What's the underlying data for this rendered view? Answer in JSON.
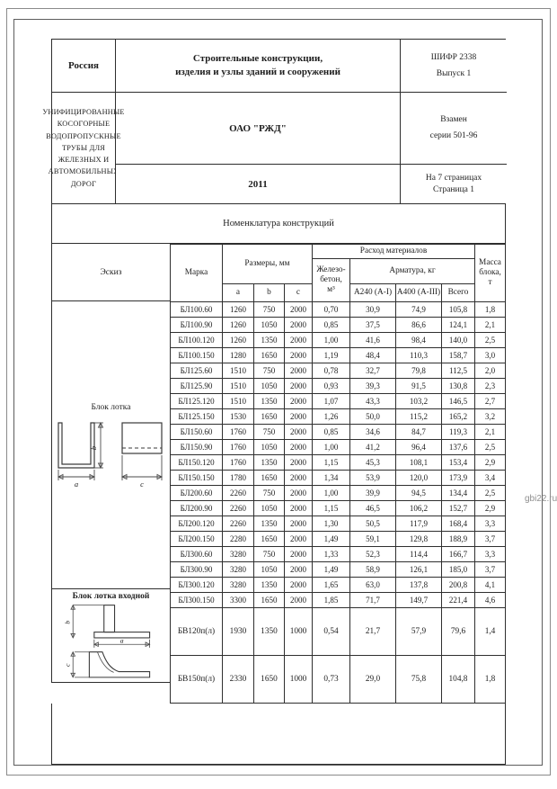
{
  "page": {
    "title_block": {
      "country": "Россия",
      "series_title_line1": "Строительные конструкции,",
      "series_title_line2": "изделия и узлы зданий и сооружений",
      "code_line1": "ШИФР 2338",
      "code_line2": "Выпуск 1",
      "organization": "ОАО \"РЖД\"",
      "subject_line1": "УНИФИЦИРОВАННЫЕ КОСОГОРНЫЕ ВОДОПРОПУСКНЫЕ ТРУБЫ ДЛЯ",
      "subject_line2": "ЖЕЛЕЗНЫХ И АВТОМОБИЛЬНЫХ ДОРОГ",
      "replaces_line1": "Взамен",
      "replaces_line2": "серии 501-96",
      "year": "2011",
      "pages_line1": "На 7 страницах",
      "pages_line2": "Страница 1"
    },
    "section_title": "Номенклатура конструкций",
    "watermark": "gbi22.ru"
  },
  "table": {
    "headers": {
      "sketch": "Эскиз",
      "mark": "Марка",
      "dimensions": "Размеры, мм",
      "dim_a": "a",
      "dim_b": "b",
      "dim_c": "c",
      "materials": "Расход материалов",
      "concrete_l1": "Железо-",
      "concrete_l2": "бетон,",
      "concrete_l3": "м³",
      "rebar": "Арматура, кг",
      "a240": "А240 (А-I)",
      "a400": "А400 (А-III)",
      "total": "Всего",
      "mass_l1": "Масса",
      "mass_l2": "блока,",
      "mass_l3": "т"
    },
    "group1_label": "Блок лотка",
    "group2_label": "Блок лотка входной",
    "sketch_dims": {
      "a": "a",
      "b": "b",
      "c": "c"
    },
    "rows": [
      [
        "БЛ100.60",
        "1260",
        "750",
        "2000",
        "0,70",
        "30,9",
        "74,9",
        "105,8",
        "1,8"
      ],
      [
        "БЛ100.90",
        "1260",
        "1050",
        "2000",
        "0,85",
        "37,5",
        "86,6",
        "124,1",
        "2,1"
      ],
      [
        "БЛ100.120",
        "1260",
        "1350",
        "2000",
        "1,00",
        "41,6",
        "98,4",
        "140,0",
        "2,5"
      ],
      [
        "БЛ100.150",
        "1280",
        "1650",
        "2000",
        "1,19",
        "48,4",
        "110,3",
        "158,7",
        "3,0"
      ],
      [
        "БЛ125.60",
        "1510",
        "750",
        "2000",
        "0,78",
        "32,7",
        "79,8",
        "112,5",
        "2,0"
      ],
      [
        "БЛ125.90",
        "1510",
        "1050",
        "2000",
        "0,93",
        "39,3",
        "91,5",
        "130,8",
        "2,3"
      ],
      [
        "БЛ125.120",
        "1510",
        "1350",
        "2000",
        "1,07",
        "43,3",
        "103,2",
        "146,5",
        "2,7"
      ],
      [
        "БЛ125.150",
        "1530",
        "1650",
        "2000",
        "1,26",
        "50,0",
        "115,2",
        "165,2",
        "3,2"
      ],
      [
        "БЛ150.60",
        "1760",
        "750",
        "2000",
        "0,85",
        "34,6",
        "84,7",
        "119,3",
        "2,1"
      ],
      [
        "БЛ150.90",
        "1760",
        "1050",
        "2000",
        "1,00",
        "41,2",
        "96,4",
        "137,6",
        "2,5"
      ],
      [
        "БЛ150.120",
        "1760",
        "1350",
        "2000",
        "1,15",
        "45,3",
        "108,1",
        "153,4",
        "2,9"
      ],
      [
        "БЛ150.150",
        "1780",
        "1650",
        "2000",
        "1,34",
        "53,9",
        "120,0",
        "173,9",
        "3,4"
      ],
      [
        "БЛ200.60",
        "2260",
        "750",
        "2000",
        "1,00",
        "39,9",
        "94,5",
        "134,4",
        "2,5"
      ],
      [
        "БЛ200.90",
        "2260",
        "1050",
        "2000",
        "1,15",
        "46,5",
        "106,2",
        "152,7",
        "2,9"
      ],
      [
        "БЛ200.120",
        "2260",
        "1350",
        "2000",
        "1,30",
        "50,5",
        "117,9",
        "168,4",
        "3,3"
      ],
      [
        "БЛ200.150",
        "2280",
        "1650",
        "2000",
        "1,49",
        "59,1",
        "129,8",
        "188,9",
        "3,7"
      ],
      [
        "БЛ300.60",
        "3280",
        "750",
        "2000",
        "1,33",
        "52,3",
        "114,4",
        "166,7",
        "3,3"
      ],
      [
        "БЛ300.90",
        "3280",
        "1050",
        "2000",
        "1,49",
        "58,9",
        "126,1",
        "185,0",
        "3,7"
      ],
      [
        "БЛ300.120",
        "3280",
        "1350",
        "2000",
        "1,65",
        "63,0",
        "137,8",
        "200,8",
        "4,1"
      ],
      [
        "БЛ300.150",
        "3300",
        "1650",
        "2000",
        "1,85",
        "71,7",
        "149,7",
        "221,4",
        "4,6"
      ]
    ],
    "rows_bv": [
      [
        "БВ120п(л)",
        "1930",
        "1350",
        "1000",
        "0,54",
        "21,7",
        "57,9",
        "79,6",
        "1,4"
      ],
      [
        "БВ150п(л)",
        "2330",
        "1650",
        "1000",
        "0,73",
        "29,0",
        "75,8",
        "104,8",
        "1,8"
      ]
    ]
  }
}
